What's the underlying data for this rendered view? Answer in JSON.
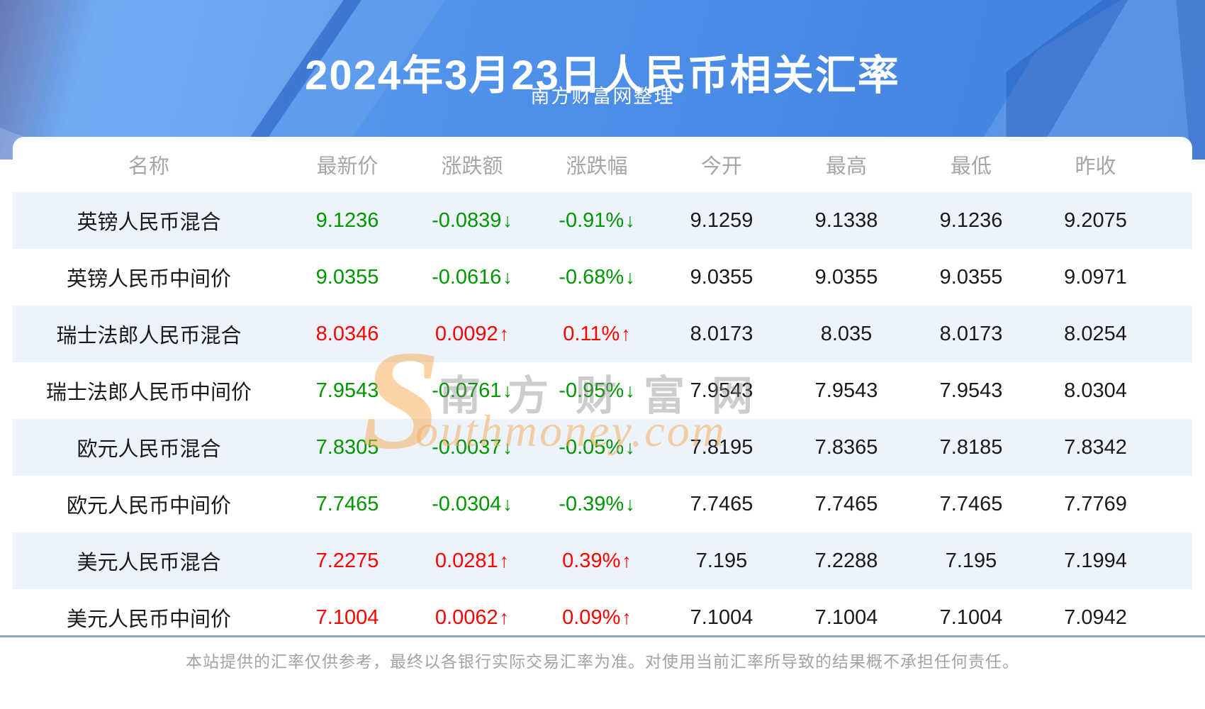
{
  "header": {
    "title": "2024年3月23日人民币相关汇率",
    "subtitle": "南方财富网整理"
  },
  "table": {
    "columns": [
      "名称",
      "最新价",
      "涨跌额",
      "涨跌幅",
      "今开",
      "最高",
      "最低",
      "昨收"
    ],
    "arrow_up": "↑",
    "arrow_down": "↓",
    "rows": [
      {
        "name": "英镑人民币混合",
        "latest": "9.1236",
        "change": "-0.0839",
        "pct": "-0.91%",
        "trend": "down",
        "open": "9.1259",
        "high": "9.1338",
        "low": "9.1236",
        "prev": "9.2075"
      },
      {
        "name": "英镑人民币中间价",
        "latest": "9.0355",
        "change": "-0.0616",
        "pct": "-0.68%",
        "trend": "down",
        "open": "9.0355",
        "high": "9.0355",
        "low": "9.0355",
        "prev": "9.0971"
      },
      {
        "name": "瑞士法郎人民币混合",
        "latest": "8.0346",
        "change": "0.0092",
        "pct": "0.11%",
        "trend": "up",
        "open": "8.0173",
        "high": "8.035",
        "low": "8.0173",
        "prev": "8.0254"
      },
      {
        "name": "瑞士法郎人民币中间价",
        "latest": "7.9543",
        "change": "-0.0761",
        "pct": "-0.95%",
        "trend": "down",
        "open": "7.9543",
        "high": "7.9543",
        "low": "7.9543",
        "prev": "8.0304"
      },
      {
        "name": "欧元人民币混合",
        "latest": "7.8305",
        "change": "-0.0037",
        "pct": "-0.05%",
        "trend": "down",
        "open": "7.8195",
        "high": "7.8365",
        "low": "7.8185",
        "prev": "7.8342"
      },
      {
        "name": "欧元人民币中间价",
        "latest": "7.7465",
        "change": "-0.0304",
        "pct": "-0.39%",
        "trend": "down",
        "open": "7.7465",
        "high": "7.7465",
        "low": "7.7465",
        "prev": "7.7769"
      },
      {
        "name": "美元人民币混合",
        "latest": "7.2275",
        "change": "0.0281",
        "pct": "0.39%",
        "trend": "up",
        "open": "7.195",
        "high": "7.2288",
        "low": "7.195",
        "prev": "7.1994"
      },
      {
        "name": "美元人民币中间价",
        "latest": "7.1004",
        "change": "0.0062",
        "pct": "0.09%",
        "trend": "up",
        "open": "7.1004",
        "high": "7.1004",
        "low": "7.1004",
        "prev": "7.0942"
      }
    ]
  },
  "watermark": {
    "s": "S",
    "cn": "南方财富网",
    "en": "outhmoney.com"
  },
  "footer": {
    "disclaimer": "本站提供的汇率仅供参考，最终以各银行实际交易汇率为准。对使用当前汇率所导致的结果概不承担任何责任。"
  },
  "colors": {
    "up": "#fe0000",
    "down": "#009600",
    "stripe": "#edf3fa",
    "banner_base": "#4a8ce7",
    "divider": "#90a5b7"
  }
}
